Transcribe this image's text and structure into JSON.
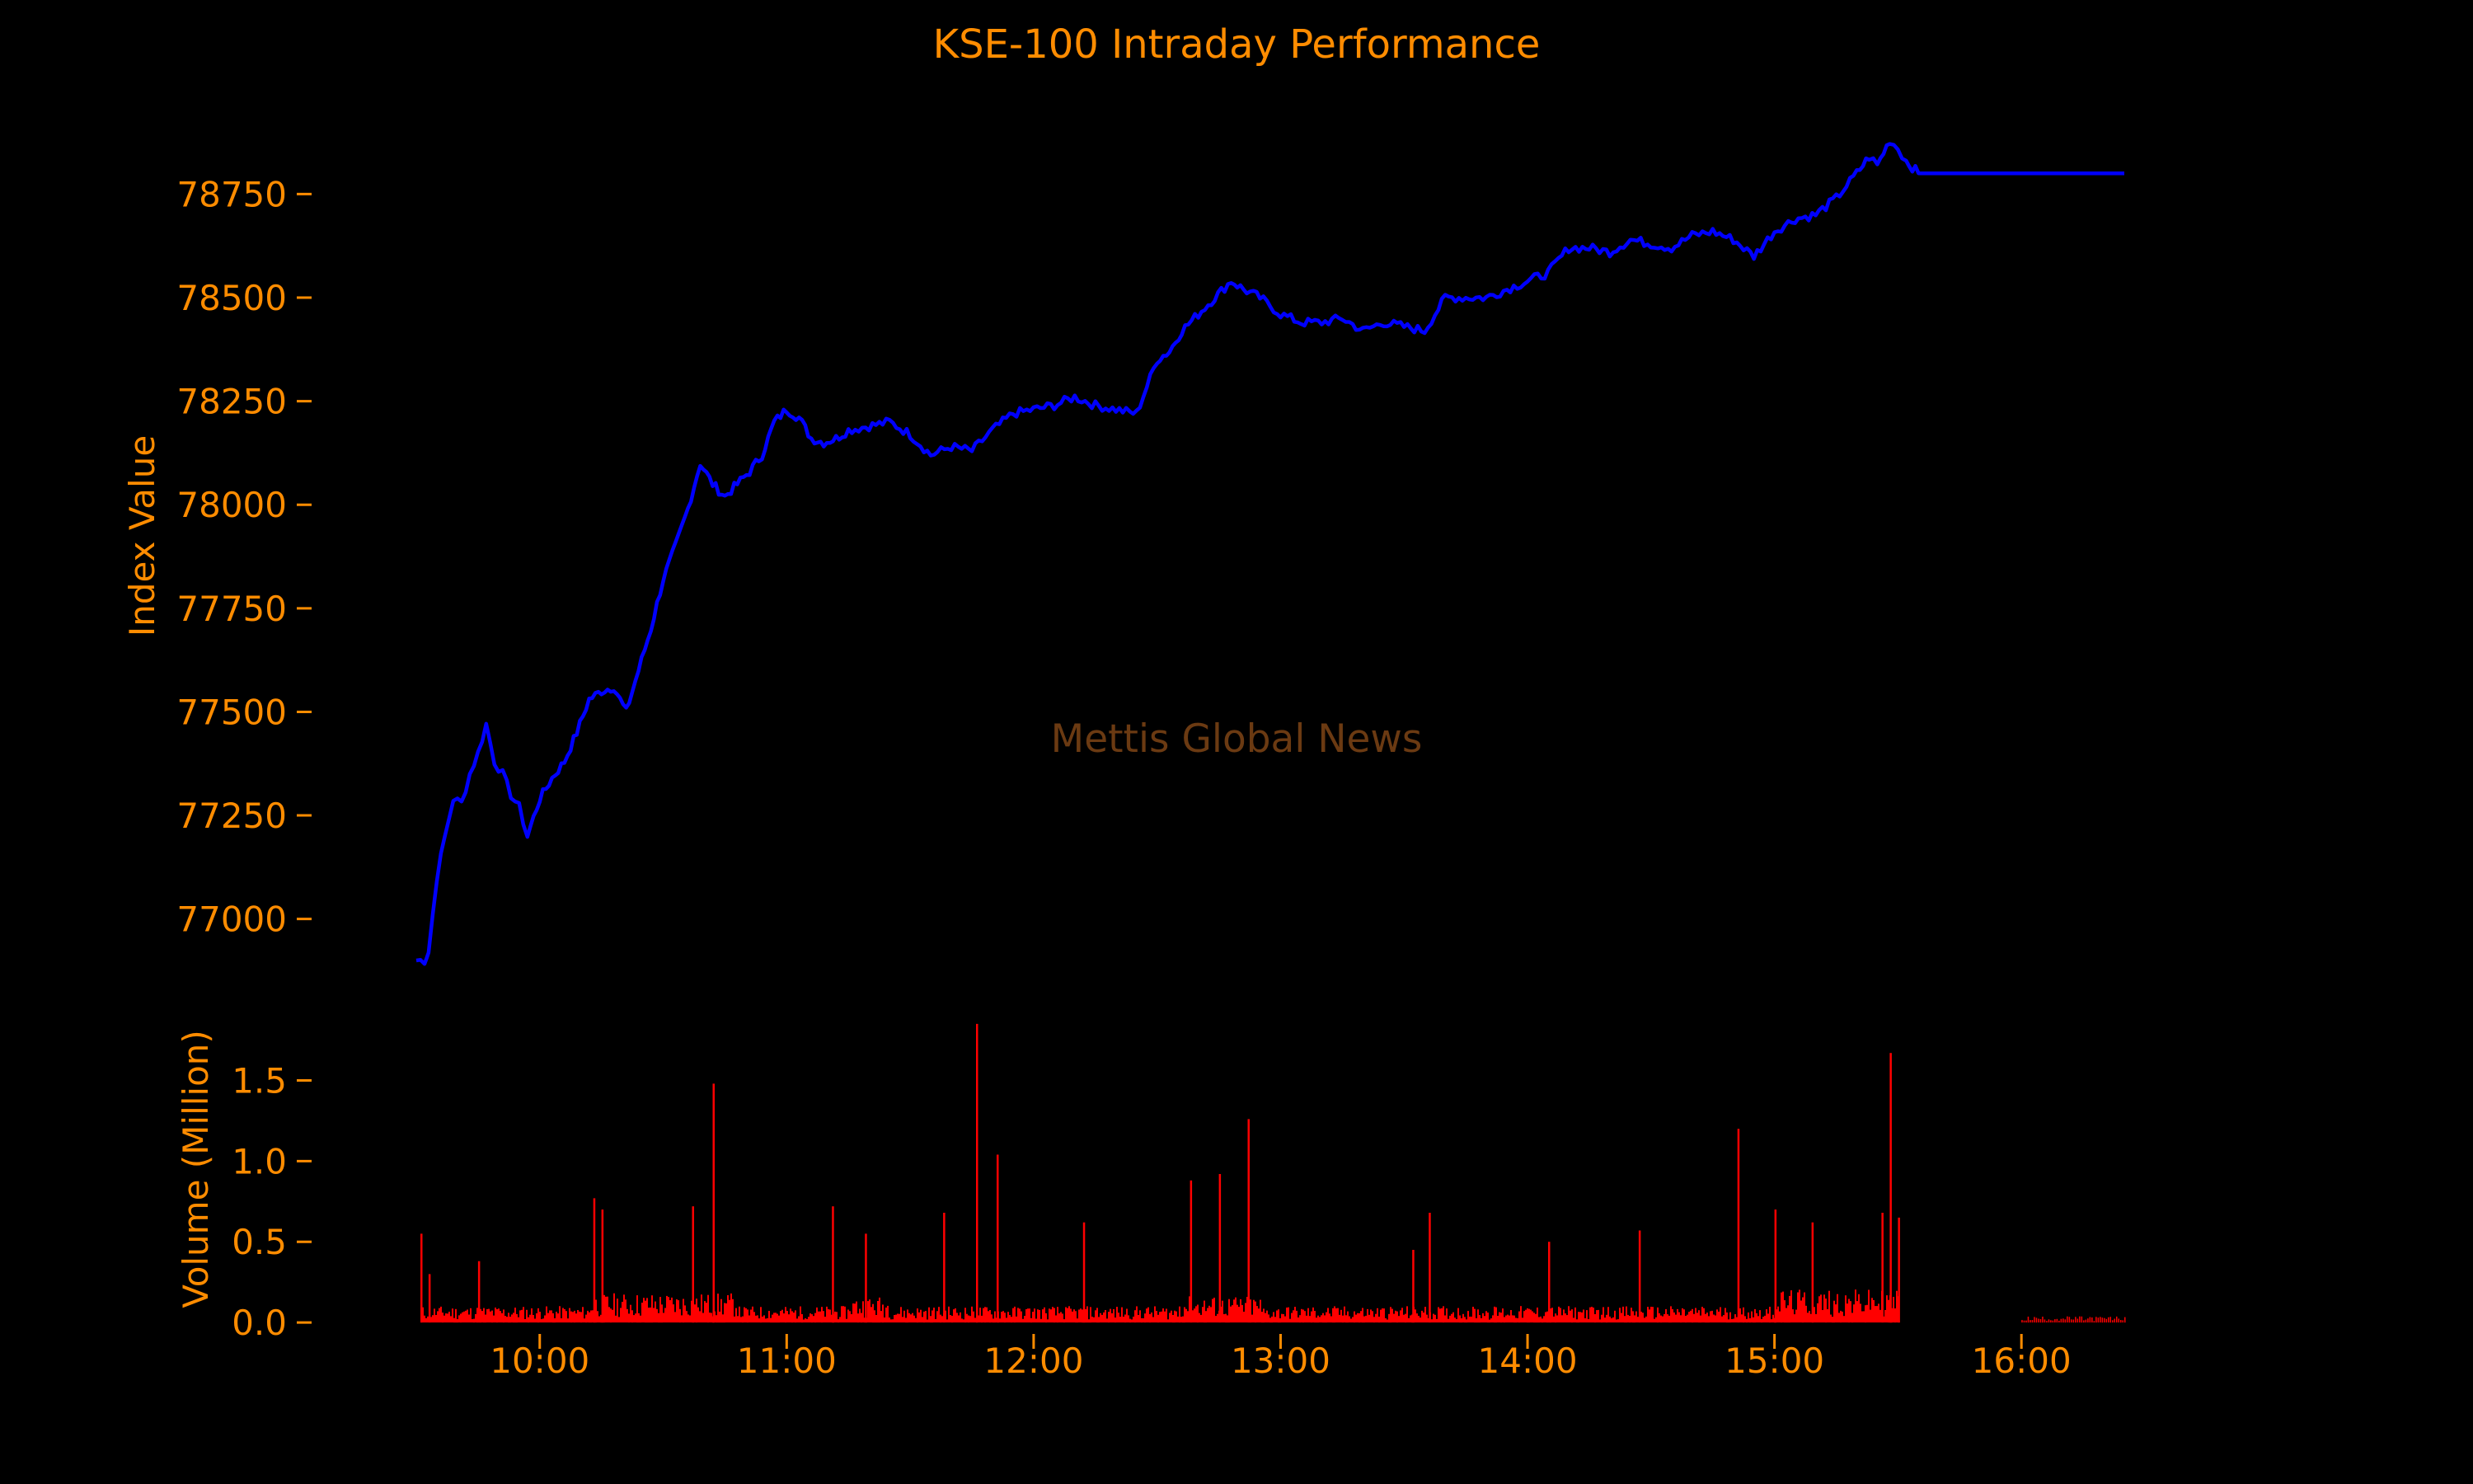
{
  "chart_data": [
    {
      "type": "line",
      "title": "KSE-100 Intraday Performance",
      "ylabel": "Index Value",
      "xlabel": "",
      "ylim": [
        76860,
        78910
      ],
      "xlim_minutes": [
        565,
        988
      ],
      "y_ticks": [
        77000,
        77250,
        77500,
        77750,
        78000,
        78250,
        78500,
        78750
      ],
      "y_tick_labels": [
        "77000",
        "77250",
        "77500",
        "77750",
        "78000",
        "78250",
        "78500",
        "78750"
      ],
      "grid": false,
      "x": [
        "09:30",
        "09:32",
        "09:33",
        "09:35",
        "09:37",
        "09:39",
        "09:41",
        "09:43",
        "09:45",
        "09:47",
        "09:49",
        "09:51",
        "09:53",
        "09:55",
        "09:57",
        "10:00",
        "10:03",
        "10:06",
        "10:09",
        "10:12",
        "10:15",
        "10:18",
        "10:21",
        "10:24",
        "10:27",
        "10:30",
        "10:33",
        "10:36",
        "10:39",
        "10:42",
        "10:45",
        "10:48",
        "10:51",
        "10:54",
        "10:57",
        "11:00",
        "11:03",
        "11:06",
        "11:09",
        "11:12",
        "11:15",
        "11:20",
        "11:25",
        "11:30",
        "11:35",
        "11:40",
        "11:45",
        "11:50",
        "11:55",
        "12:00",
        "12:05",
        "12:10",
        "12:15",
        "12:20",
        "12:25",
        "12:30",
        "12:33",
        "12:36",
        "12:40",
        "12:44",
        "12:48",
        "12:51",
        "12:55",
        "13:00",
        "13:05",
        "13:10",
        "13:15",
        "13:20",
        "13:25",
        "13:30",
        "13:35",
        "13:40",
        "13:45",
        "13:50",
        "13:55",
        "14:00",
        "14:05",
        "14:10",
        "14:15",
        "14:20",
        "14:25",
        "14:30",
        "14:35",
        "14:40",
        "14:45",
        "14:50",
        "14:55",
        "15:00",
        "15:05",
        "15:10",
        "15:15",
        "15:20",
        "15:23",
        "15:25",
        "15:28",
        "15:30",
        "15:32",
        "15:35",
        "15:45",
        "16:00",
        "16:15",
        "16:25"
      ],
      "series": [
        {
          "values": [
            76900,
            76900,
            76920,
            77100,
            77200,
            77290,
            77280,
            77350,
            77400,
            77470,
            77380,
            77350,
            77300,
            77270,
            77200,
            77290,
            77340,
            77380,
            77450,
            77530,
            77550,
            77560,
            77500,
            77600,
            77700,
            77820,
            77900,
            77990,
            78100,
            78050,
            78020,
            78050,
            78080,
            78120,
            78200,
            78230,
            78210,
            78160,
            78150,
            78160,
            78180,
            78190,
            78200,
            78170,
            78120,
            78140,
            78130,
            78180,
            78220,
            78230,
            78240,
            78260,
            78240,
            78230,
            78220,
            78350,
            78370,
            78420,
            78460,
            78500,
            78540,
            78520,
            78500,
            78460,
            78440,
            78440,
            78450,
            78420,
            78440,
            78430,
            78420,
            78500,
            78500,
            78500,
            78520,
            78540,
            78560,
            78620,
            78620,
            78610,
            78640,
            78630,
            78620,
            78650,
            78660,
            78640,
            78600,
            78660,
            78690,
            78700,
            78740,
            78800,
            78840,
            78820,
            78880,
            78860,
            78830,
            78800,
            78800,
            78800,
            78800,
            78800
          ]
        }
      ],
      "color": "#0000ff"
    },
    {
      "type": "bar",
      "ylabel": "Volume (Million)",
      "xlabel": "",
      "ylim": [
        -0.03,
        1.87
      ],
      "y_ticks": [
        0.0,
        0.5,
        1.0,
        1.5
      ],
      "y_tick_labels": [
        "0.0",
        "0.5",
        "1.0",
        "1.5"
      ],
      "x_tick_labels": [
        "10:00",
        "11:00",
        "12:00",
        "13:00",
        "14:00",
        "15:00",
        "16:00"
      ],
      "x_ticks_minutes": [
        600,
        660,
        720,
        780,
        840,
        900,
        960
      ],
      "grid": false,
      "color": "#ff0000",
      "spikes": [
        {
          "time": "09:31",
          "value": 0.55
        },
        {
          "time": "09:33",
          "value": 0.3
        },
        {
          "time": "09:45",
          "value": 0.38
        },
        {
          "time": "10:13",
          "value": 0.77
        },
        {
          "time": "10:15",
          "value": 0.7
        },
        {
          "time": "10:37",
          "value": 0.72
        },
        {
          "time": "10:42",
          "value": 1.48
        },
        {
          "time": "11:11",
          "value": 0.72
        },
        {
          "time": "11:19",
          "value": 0.55
        },
        {
          "time": "11:38",
          "value": 0.68
        },
        {
          "time": "11:46",
          "value": 1.85
        },
        {
          "time": "11:51",
          "value": 1.04
        },
        {
          "time": "12:12",
          "value": 0.62
        },
        {
          "time": "12:38",
          "value": 0.88
        },
        {
          "time": "12:45",
          "value": 0.92
        },
        {
          "time": "12:52",
          "value": 1.26
        },
        {
          "time": "13:32",
          "value": 0.45
        },
        {
          "time": "13:36",
          "value": 0.68
        },
        {
          "time": "14:05",
          "value": 0.5
        },
        {
          "time": "14:27",
          "value": 0.57
        },
        {
          "time": "14:51",
          "value": 1.2
        },
        {
          "time": "15:00",
          "value": 0.7
        },
        {
          "time": "15:09",
          "value": 0.62
        },
        {
          "time": "15:26",
          "value": 0.68
        },
        {
          "time": "15:28",
          "value": 1.67
        },
        {
          "time": "15:30",
          "value": 0.65
        }
      ],
      "baseline_level": 0.06,
      "closing_session_level": 0.03
    }
  ],
  "watermark": "Mettis Global News"
}
